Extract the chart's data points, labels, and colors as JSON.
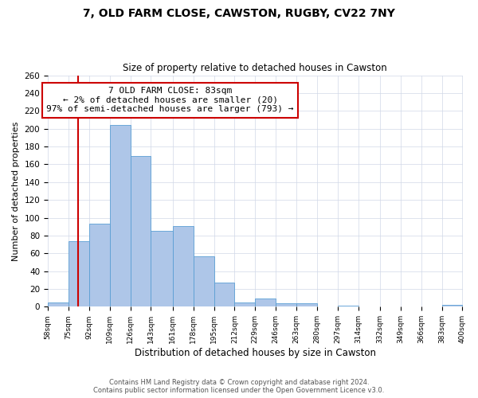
{
  "title": "7, OLD FARM CLOSE, CAWSTON, RUGBY, CV22 7NY",
  "subtitle": "Size of property relative to detached houses in Cawston",
  "xlabel": "Distribution of detached houses by size in Cawston",
  "ylabel": "Number of detached properties",
  "bin_edges": [
    58,
    75,
    92,
    109,
    126,
    143,
    161,
    178,
    195,
    212,
    229,
    246,
    263,
    280,
    297,
    314,
    332,
    349,
    366,
    383,
    400
  ],
  "counts": [
    5,
    74,
    93,
    204,
    169,
    85,
    91,
    57,
    27,
    5,
    9,
    4,
    4,
    0,
    1,
    0,
    0,
    0,
    0,
    2
  ],
  "bar_color": "#aec6e8",
  "bar_edge_color": "#5a9fd4",
  "property_line_x": 83,
  "property_line_color": "#cc0000",
  "annotation_text": "7 OLD FARM CLOSE: 83sqm\n← 2% of detached houses are smaller (20)\n97% of semi-detached houses are larger (793) →",
  "annotation_box_color": "#cc0000",
  "ylim": [
    0,
    260
  ],
  "yticks": [
    0,
    20,
    40,
    60,
    80,
    100,
    120,
    140,
    160,
    180,
    200,
    220,
    240,
    260
  ],
  "footer_line1": "Contains HM Land Registry data © Crown copyright and database right 2024.",
  "footer_line2": "Contains public sector information licensed under the Open Government Licence v3.0.",
  "background_color": "#ffffff",
  "grid_color": "#d0d8e8"
}
